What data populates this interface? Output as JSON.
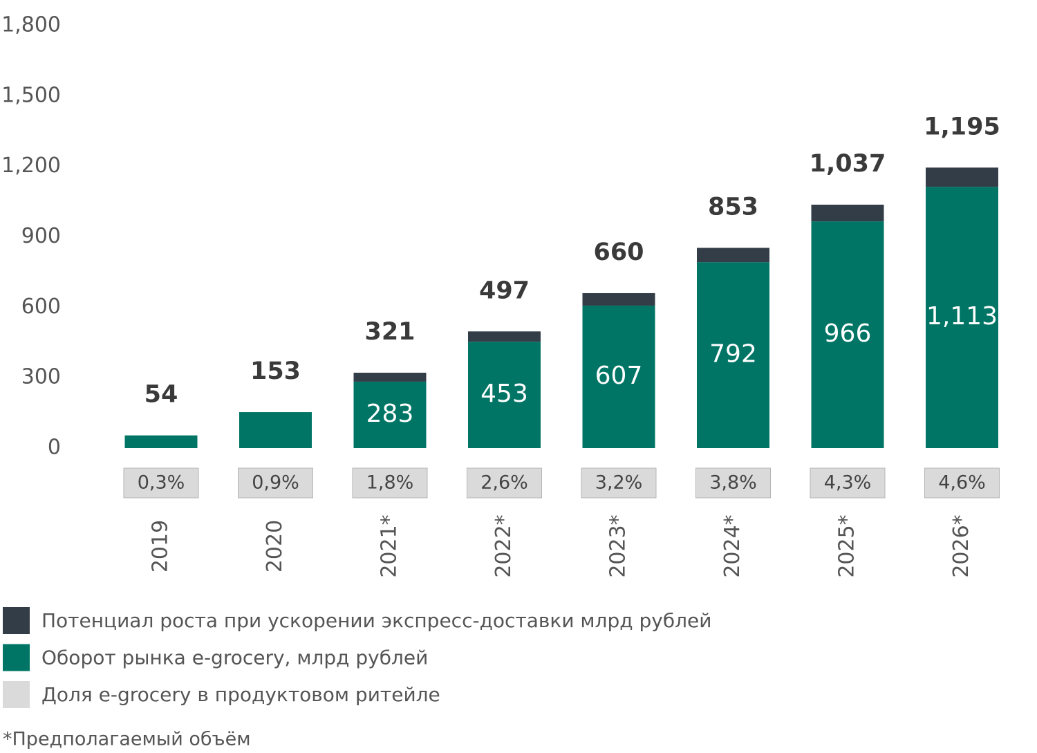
{
  "chart_data": {
    "type": "stacked-bar",
    "categories": [
      "2019",
      "2020",
      "2021*",
      "2022*",
      "2023*",
      "2024*",
      "2025*",
      "2026*"
    ],
    "series": [
      {
        "name": "Потенциал роста при ускорении экспресс-доставки млрд рублей",
        "color": "#333d47",
        "values": [
          null,
          null,
          38,
          44,
          53,
          61,
          71,
          82
        ]
      },
      {
        "name": "Оборот рынка e-grocery, млрд рублей",
        "color": "#007565",
        "values": [
          54,
          153,
          283,
          453,
          607,
          792,
          966,
          1113
        ],
        "value_labels": [
          null,
          null,
          "283",
          "453",
          "607",
          "792",
          "966",
          "1,113"
        ]
      }
    ],
    "totals": [
      54,
      153,
      321,
      497,
      660,
      853,
      1037,
      1195
    ],
    "total_labels": [
      "54",
      "153",
      "321",
      "497",
      "660",
      "853",
      "1,037",
      "1,195"
    ],
    "share": {
      "name": "Доля e-grocery в продуктовом ритейле",
      "color": "#dadada",
      "values": [
        0.3,
        0.9,
        1.8,
        2.6,
        3.2,
        3.8,
        4.3,
        4.6
      ],
      "value_labels": [
        "0,3%",
        "0,9%",
        "1,8%",
        "2,6%",
        "3,2%",
        "3,8%",
        "4,3%",
        "4,6%"
      ]
    },
    "ylim": [
      0,
      1800
    ],
    "yticks": [
      0,
      300,
      600,
      900,
      {
        "value": 1200,
        "label": "1,200"
      },
      {
        "value": 1500,
        "label": "1,500"
      },
      {
        "value": 1800,
        "label": "1,800"
      }
    ],
    "grid": false,
    "footnote": "*Предполагаемый объём"
  }
}
